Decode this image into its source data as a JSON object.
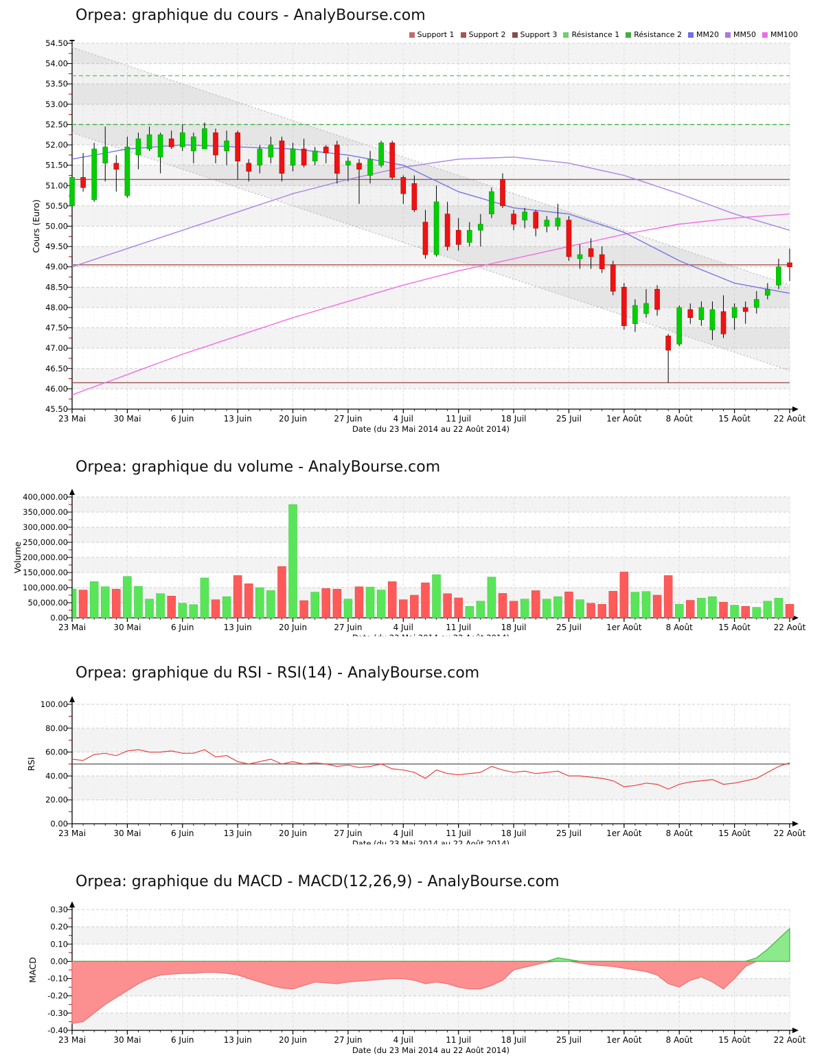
{
  "axis": {
    "xlabel": "Date (du 23 Mai 2014 au 22 Août 2014)",
    "x_tick_labels": [
      "23 Mai",
      "30 Mai",
      "6 Juin",
      "13 Juin",
      "20 Juin",
      "27 Juin",
      "4 Juil",
      "11 Juil",
      "18 Juil",
      "25 Juil",
      "1er Août",
      "8 Août",
      "15 Août",
      "22 Août"
    ],
    "x_tick_indices": [
      0,
      5,
      10,
      15,
      20,
      25,
      30,
      35,
      40,
      45,
      50,
      55,
      60,
      65
    ],
    "n_points": 66
  },
  "legend": [
    {
      "label": "Support 1",
      "color": "#c46a6a"
    },
    {
      "label": "Support 2",
      "color": "#a85454"
    },
    {
      "label": "Support 3",
      "color": "#8a4a4a"
    },
    {
      "label": "Résistance 1",
      "color": "#6fce6f"
    },
    {
      "label": "Résistance 2",
      "color": "#3faf3f"
    },
    {
      "label": "MM20",
      "color": "#7070e8"
    },
    {
      "label": "MM50",
      "color": "#a878e0"
    },
    {
      "label": "MM100",
      "color": "#f06ae8"
    }
  ],
  "colors": {
    "candle_up": "#00cf00",
    "candle_up_edge": "#009900",
    "candle_down": "#ef1212",
    "candle_down_edge": "#bb0000",
    "volume_up": "#58e658",
    "volume_up_edge": "#3cc43c",
    "volume_down": "#ff5a5a",
    "volume_down_edge": "#e04444",
    "rsi_line": "#e84040",
    "rsi_midline": "#555555",
    "macd_pos_fill": "#8ce98c",
    "macd_pos_edge": "#3db53d",
    "macd_neg_fill": "#fc8f8f",
    "macd_neg_edge": "#e86a6a",
    "mm20": "#7575e8",
    "mm50": "#ac82e4",
    "mm100": "#f26ce2",
    "support_lines": [
      "#9a5858",
      "#b26262",
      "#a45c5c"
    ],
    "resistance_lines": [
      "#3baf3b",
      "#58c058"
    ],
    "channel": "#b5b5b5",
    "band": "#f3f3f3",
    "grid": "#cdcdcd",
    "minor_tick": "#cc0000"
  },
  "chart_data": [
    {
      "type": "candlestick",
      "title": "Orpea: graphique du cours - AnalyBourse.com",
      "ylabel": "Cours (Euro)",
      "xlabel": "Date (du 23 Mai 2014 au 22 Août 2014)",
      "ylim": [
        45.5,
        54.5
      ],
      "ystep": 0.5,
      "y_tick_labels": [
        "45.50",
        "46.00",
        "46.50",
        "47.00",
        "47.50",
        "48.00",
        "48.50",
        "49.00",
        "49.50",
        "50.00",
        "50.50",
        "51.00",
        "51.50",
        "52.00",
        "52.50",
        "53.00",
        "53.50",
        "54.00",
        "54.50"
      ],
      "candles_ohlc": [
        [
          50.5,
          51.45,
          50.45,
          51.2
        ],
        [
          51.2,
          51.8,
          50.85,
          50.95
        ],
        [
          50.65,
          52.05,
          50.6,
          51.9
        ],
        [
          51.55,
          52.45,
          51.1,
          51.95
        ],
        [
          51.55,
          51.75,
          50.85,
          51.4
        ],
        [
          50.75,
          52.2,
          50.7,
          51.95
        ],
        [
          51.75,
          52.3,
          51.4,
          52.15
        ],
        [
          51.9,
          52.45,
          51.85,
          52.25
        ],
        [
          51.7,
          52.3,
          51.3,
          52.25
        ],
        [
          52.15,
          52.35,
          51.9,
          51.95
        ],
        [
          51.95,
          52.5,
          51.85,
          52.3
        ],
        [
          51.85,
          52.3,
          51.55,
          52.2
        ],
        [
          51.9,
          52.55,
          51.9,
          52.4
        ],
        [
          52.3,
          52.4,
          51.55,
          51.75
        ],
        [
          51.85,
          52.35,
          51.5,
          52.1
        ],
        [
          52.3,
          52.35,
          51.15,
          51.6
        ],
        [
          51.55,
          51.65,
          51.1,
          51.35
        ],
        [
          51.5,
          52.0,
          51.3,
          51.9
        ],
        [
          51.7,
          52.2,
          51.55,
          52.0
        ],
        [
          52.1,
          52.2,
          51.1,
          51.3
        ],
        [
          51.5,
          52.05,
          51.35,
          51.9
        ],
        [
          51.9,
          52.15,
          51.45,
          51.5
        ],
        [
          51.6,
          51.95,
          51.5,
          51.85
        ],
        [
          51.95,
          52.0,
          51.55,
          51.8
        ],
        [
          52.0,
          52.1,
          51.05,
          51.3
        ],
        [
          51.5,
          51.7,
          51.1,
          51.6
        ],
        [
          51.55,
          51.65,
          50.55,
          51.4
        ],
        [
          51.25,
          51.85,
          51.05,
          51.65
        ],
        [
          51.5,
          52.1,
          51.45,
          52.05
        ],
        [
          52.05,
          52.1,
          51.15,
          51.2
        ],
        [
          51.2,
          51.25,
          50.55,
          50.8
        ],
        [
          51.05,
          51.25,
          50.35,
          50.4
        ],
        [
          50.1,
          50.4,
          49.2,
          49.3
        ],
        [
          49.3,
          51.0,
          49.25,
          50.6
        ],
        [
          50.3,
          50.6,
          49.4,
          49.5
        ],
        [
          49.9,
          50.2,
          49.4,
          49.55
        ],
        [
          49.6,
          50.1,
          49.5,
          49.9
        ],
        [
          49.9,
          50.3,
          49.5,
          50.05
        ],
        [
          50.3,
          50.95,
          50.2,
          50.85
        ],
        [
          51.15,
          51.3,
          50.45,
          50.5
        ],
        [
          50.3,
          50.4,
          49.9,
          50.05
        ],
        [
          50.15,
          50.45,
          49.95,
          50.35
        ],
        [
          50.35,
          50.4,
          49.75,
          49.95
        ],
        [
          50.0,
          50.25,
          49.85,
          50.15
        ],
        [
          50.0,
          50.55,
          49.9,
          50.2
        ],
        [
          50.15,
          50.25,
          49.15,
          49.25
        ],
        [
          49.2,
          49.55,
          48.95,
          49.3
        ],
        [
          49.45,
          49.7,
          48.95,
          49.25
        ],
        [
          49.3,
          49.5,
          48.85,
          48.95
        ],
        [
          49.05,
          49.15,
          48.3,
          48.4
        ],
        [
          48.5,
          48.6,
          47.45,
          47.55
        ],
        [
          47.6,
          48.2,
          47.4,
          48.05
        ],
        [
          47.85,
          48.45,
          47.75,
          48.1
        ],
        [
          48.45,
          48.55,
          47.8,
          47.95
        ],
        [
          47.3,
          47.35,
          46.15,
          46.95
        ],
        [
          47.1,
          48.05,
          47.05,
          48.0
        ],
        [
          47.95,
          48.1,
          47.6,
          47.75
        ],
        [
          47.7,
          48.15,
          47.55,
          48.0
        ],
        [
          47.45,
          48.15,
          47.2,
          47.95
        ],
        [
          47.9,
          48.3,
          47.25,
          47.35
        ],
        [
          47.75,
          48.1,
          47.45,
          48.0
        ],
        [
          48.0,
          48.15,
          47.6,
          47.9
        ],
        [
          48.0,
          48.4,
          47.85,
          48.2
        ],
        [
          48.3,
          48.6,
          48.2,
          48.45
        ],
        [
          48.55,
          49.2,
          48.45,
          49.0
        ],
        [
          49.1,
          49.45,
          48.65,
          49.0
        ]
      ],
      "support_levels": [
        {
          "name": "Support 1",
          "value": 51.15
        },
        {
          "name": "Support 2",
          "value": 49.05
        },
        {
          "name": "Support 3",
          "value": 46.15
        }
      ],
      "resistance_levels": [
        {
          "name": "Résistance 1",
          "value": 52.5
        },
        {
          "name": "Résistance 2",
          "value": 53.7
        }
      ],
      "moving_averages": {
        "anchor_indices": [
          0,
          5,
          10,
          15,
          20,
          25,
          30,
          35,
          40,
          45,
          50,
          55,
          60,
          65
        ],
        "mm20": [
          51.65,
          51.9,
          52.0,
          51.95,
          51.9,
          51.75,
          51.5,
          50.85,
          50.45,
          50.3,
          49.85,
          49.15,
          48.6,
          48.35
        ],
        "mm50": [
          49.0,
          49.45,
          49.9,
          50.35,
          50.8,
          51.15,
          51.45,
          51.65,
          51.7,
          51.55,
          51.25,
          50.8,
          50.3,
          49.9
        ],
        "mm100": [
          45.85,
          46.35,
          46.85,
          47.3,
          47.75,
          48.15,
          48.55,
          48.9,
          49.2,
          49.5,
          49.8,
          50.05,
          50.2,
          50.3
        ]
      },
      "trend_channel": {
        "upper_start": 54.4,
        "upper_end": 48.55,
        "lower_start": 52.3,
        "lower_end": 46.45
      }
    },
    {
      "type": "bar",
      "title": "Orpea: graphique du volume - AnalyBourse.com",
      "ylabel": "Volume",
      "xlabel": "Date (du 23 Mai 2014 au 22 Août 2014)",
      "ylim": [
        0,
        400000
      ],
      "ystep": 50000,
      "y_tick_labels": [
        "0.00",
        "50,000.00",
        "100,000.00",
        "150,000.00",
        "200,000.00",
        "250,000.00",
        "300,000.00",
        "350,000.00",
        "400,000.00"
      ],
      "values": [
        95000,
        92000,
        120000,
        103000,
        95000,
        137000,
        104000,
        62000,
        80000,
        72000,
        48000,
        44000,
        132000,
        60000,
        70000,
        140000,
        113000,
        100000,
        90000,
        170000,
        375000,
        57000,
        85000,
        97000,
        95000,
        62000,
        103000,
        102000,
        92000,
        120000,
        60000,
        75000,
        116000,
        143000,
        80000,
        66000,
        38000,
        55000,
        135000,
        81000,
        55000,
        62000,
        90000,
        62000,
        70000,
        86000,
        60000,
        48000,
        45000,
        88000,
        152000,
        85000,
        87000,
        75000,
        140000,
        45000,
        58000,
        65000,
        70000,
        52000,
        42000,
        38000,
        35000,
        55000,
        65000,
        45000
      ],
      "bar_color_rule": "green when close >= open, red otherwise"
    },
    {
      "type": "line",
      "title": "Orpea: graphique du RSI - RSI(14) - AnalyBourse.com",
      "ylabel": "RSI",
      "xlabel": "Date (du 23 Mai 2014 au 22 Août 2014)",
      "ylim": [
        0,
        100
      ],
      "ystep": 20,
      "y_tick_labels": [
        "0.00",
        "20.00",
        "40.00",
        "60.00",
        "80.00",
        "100.00"
      ],
      "midline": 50,
      "values": [
        54,
        53,
        58,
        59,
        57,
        61,
        62,
        60,
        60,
        61,
        59,
        59,
        62,
        56,
        57,
        52,
        50,
        52,
        54,
        50,
        52,
        50,
        51,
        50,
        48,
        49,
        47,
        48,
        50,
        46,
        45,
        43,
        38,
        45,
        42,
        41,
        42,
        43,
        48,
        45,
        43,
        44,
        42,
        43,
        44,
        40,
        40,
        39,
        38,
        36,
        31,
        32,
        34,
        33,
        29,
        33,
        35,
        36,
        37,
        33,
        34,
        36,
        38,
        43,
        48,
        51
      ]
    },
    {
      "type": "area",
      "title": "Orpea: graphique du MACD - MACD(12,26,9) - AnalyBourse.com",
      "ylabel": "MACD",
      "xlabel": "Date (du 23 Mai 2014 au 22 Août 2014)",
      "ylim": [
        -0.4,
        0.3
      ],
      "ystep": 0.1,
      "y_tick_labels": [
        "-0.40",
        "-0.30",
        "-0.20",
        "-0.10",
        "0.00",
        "0.10",
        "0.20",
        "0.30"
      ],
      "values": [
        -0.36,
        -0.35,
        -0.3,
        -0.25,
        -0.21,
        -0.17,
        -0.13,
        -0.1,
        -0.08,
        -0.075,
        -0.07,
        -0.07,
        -0.065,
        -0.065,
        -0.07,
        -0.08,
        -0.1,
        -0.12,
        -0.14,
        -0.155,
        -0.16,
        -0.14,
        -0.12,
        -0.125,
        -0.13,
        -0.12,
        -0.115,
        -0.11,
        -0.105,
        -0.1,
        -0.1,
        -0.11,
        -0.13,
        -0.12,
        -0.13,
        -0.15,
        -0.16,
        -0.16,
        -0.14,
        -0.11,
        -0.05,
        -0.035,
        -0.02,
        -0.005,
        0.02,
        0.01,
        -0.01,
        -0.02,
        -0.025,
        -0.03,
        -0.04,
        -0.05,
        -0.06,
        -0.08,
        -0.13,
        -0.15,
        -0.11,
        -0.09,
        -0.12,
        -0.16,
        -0.1,
        -0.03,
        0.02,
        0.07,
        0.13,
        0.19
      ]
    }
  ]
}
